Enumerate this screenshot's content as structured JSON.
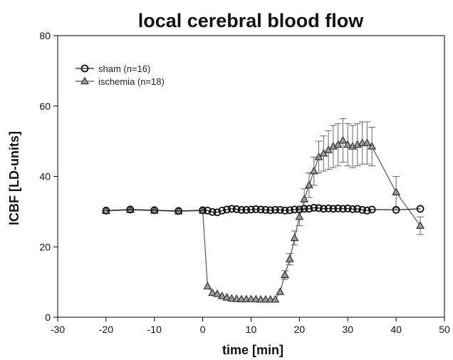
{
  "chart_data": {
    "type": "line",
    "title": "local cerebral blood flow",
    "xlabel": "time [min]",
    "ylabel": "lCBF [LD-units]",
    "xlim": [
      -30,
      50
    ],
    "ylim": [
      0,
      80
    ],
    "xticks": [
      -30,
      -20,
      -10,
      0,
      10,
      20,
      30,
      40,
      50
    ],
    "yticks": [
      0,
      20,
      40,
      60,
      80
    ],
    "grid": false,
    "legend_position": "top-left",
    "series": [
      {
        "name": "sham (n=16)",
        "marker": "circle",
        "color": "#222222",
        "x": [
          -20,
          -15,
          -10,
          -5,
          0,
          1,
          2,
          3,
          4,
          5,
          6,
          7,
          8,
          9,
          10,
          11,
          12,
          13,
          14,
          15,
          16,
          17,
          18,
          19,
          20,
          21,
          22,
          23,
          24,
          25,
          26,
          27,
          28,
          29,
          30,
          31,
          32,
          33,
          34,
          35,
          40,
          45
        ],
        "y": [
          30.3,
          30.6,
          30.4,
          30.2,
          30.4,
          30.3,
          29.9,
          29.8,
          30.3,
          30.6,
          30.8,
          30.7,
          30.5,
          30.5,
          30.6,
          30.7,
          30.6,
          30.5,
          30.4,
          30.5,
          30.5,
          30.3,
          30.4,
          30.6,
          30.6,
          30.8,
          30.8,
          31.1,
          31.0,
          30.8,
          30.9,
          30.8,
          30.9,
          30.8,
          30.9,
          30.7,
          30.8,
          30.5,
          30.3,
          30.6,
          30.5,
          30.8
        ]
      },
      {
        "name": "ischemia (n=18)",
        "marker": "triangle",
        "color": "#555555",
        "x": [
          -20,
          -15,
          -10,
          -5,
          0,
          1,
          2,
          3,
          4,
          5,
          6,
          7,
          8,
          9,
          10,
          11,
          12,
          13,
          14,
          15,
          16,
          17,
          18,
          19,
          20,
          21,
          22,
          23,
          24,
          25,
          26,
          27,
          28,
          29,
          30,
          31,
          32,
          33,
          34,
          35,
          40,
          45
        ],
        "y": [
          30.2,
          30.5,
          30.3,
          30.1,
          30.3,
          8.8,
          6.9,
          6.6,
          6.0,
          5.6,
          5.3,
          5.2,
          5.1,
          5.1,
          5.1,
          5.1,
          5.0,
          5.0,
          5.0,
          5.0,
          7.2,
          12.0,
          16.5,
          22.5,
          28.5,
          33.5,
          37.5,
          41.5,
          45.5,
          46.5,
          47.5,
          48.5,
          49.0,
          50.2,
          49.0,
          48.5,
          49.0,
          49.5,
          49.5,
          48.5,
          35.5,
          26.0
        ],
        "error": [
          0.6,
          0.6,
          0.6,
          0.6,
          0.6,
          0.9,
          0.8,
          0.7,
          0.6,
          0.5,
          0.5,
          0.5,
          0.5,
          0.5,
          0.5,
          0.5,
          0.5,
          0.5,
          0.5,
          0.5,
          0.8,
          1.2,
          1.6,
          2.0,
          2.5,
          3.0,
          3.5,
          4.0,
          4.5,
          5.0,
          5.5,
          6.0,
          6.0,
          6.2,
          6.0,
          6.0,
          6.0,
          6.0,
          6.0,
          5.5,
          4.5,
          2.5
        ]
      }
    ]
  }
}
